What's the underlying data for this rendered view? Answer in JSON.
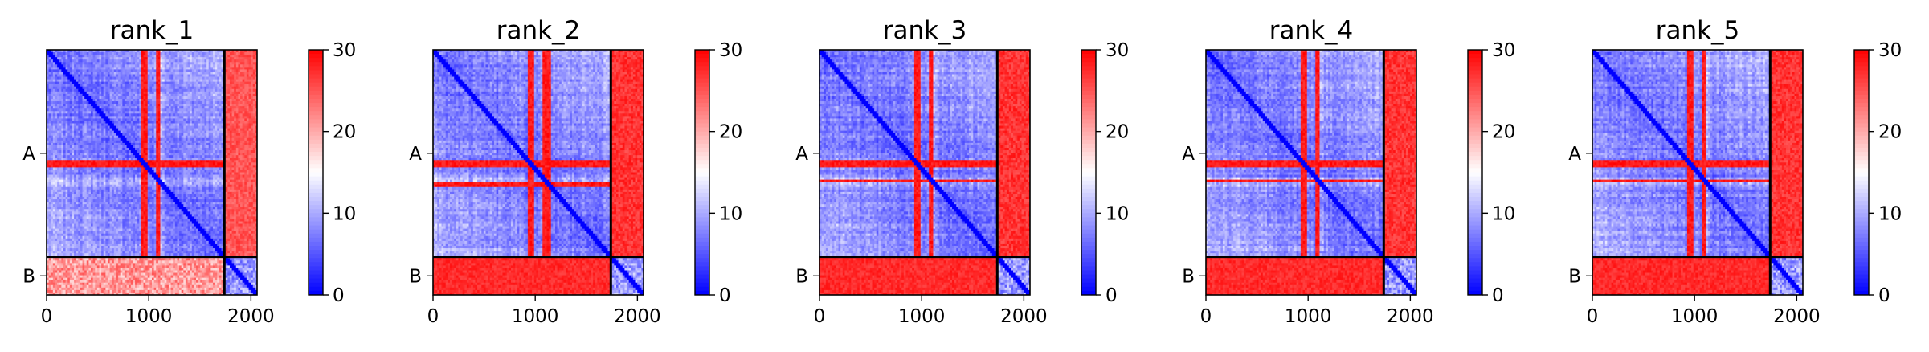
{
  "chart_data": {
    "type": "heatmap",
    "colormap": {
      "name": "bwr",
      "low_color": "#0000ff",
      "mid_color": "#ffffff",
      "high_color": "#ff0000",
      "vmin": 0,
      "vmax": 30,
      "ticks": [
        0,
        10,
        20,
        30
      ]
    },
    "axis": {
      "xlim": [
        0,
        2060
      ],
      "x_ticks": [
        0,
        1000,
        2000
      ],
      "chain_boundary": 1740,
      "chain_labels": [
        {
          "label": "A",
          "center": 870
        },
        {
          "label": "B",
          "center": 1900
        }
      ]
    },
    "panels": [
      {
        "title": "rank_1",
        "typical_error": {
          "A-A": 6,
          "A-B": 27,
          "B-A": 25,
          "B-B": 5
        }
      },
      {
        "title": "rank_2",
        "typical_error": {
          "A-A": 6,
          "A-B": 29,
          "B-A": 29,
          "B-B": 5
        }
      },
      {
        "title": "rank_3",
        "typical_error": {
          "A-A": 6,
          "A-B": 29,
          "B-A": 29,
          "B-B": 5
        }
      },
      {
        "title": "rank_4",
        "typical_error": {
          "A-A": 6,
          "A-B": 29,
          "B-A": 29,
          "B-B": 5
        }
      },
      {
        "title": "rank_5",
        "typical_error": {
          "A-A": 6,
          "A-B": 29,
          "B-A": 29,
          "B-B": 5
        }
      }
    ]
  }
}
